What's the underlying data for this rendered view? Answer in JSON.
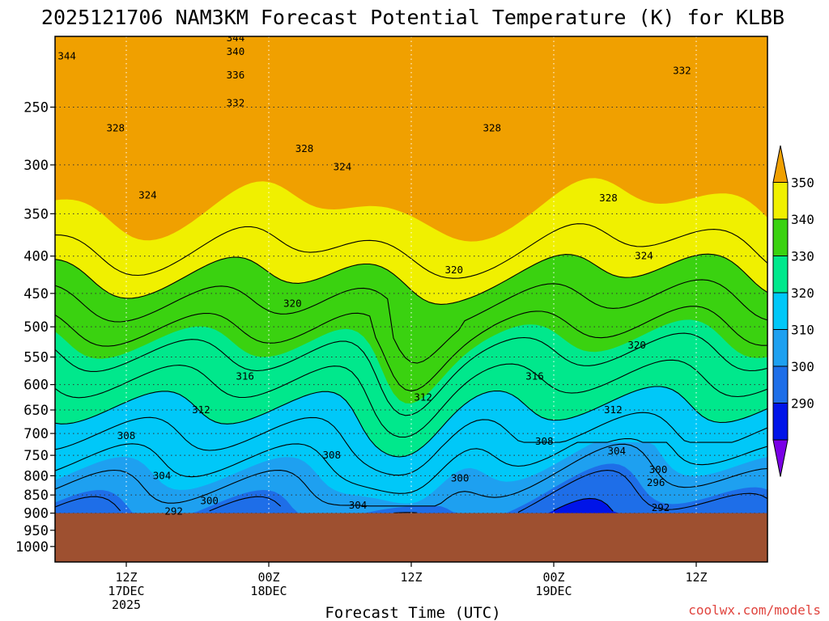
{
  "chart_data": {
    "type": "contour",
    "title": "2025121706 NAM3KM Forecast Potential Temperature (K) for KLBB",
    "xlabel": "Forecast Time (UTC)",
    "ylabel": "",
    "credit": "coolwx.com/models",
    "x_ticks": [
      {
        "hour": 6,
        "lines": [
          "12Z",
          "17DEC",
          "2025"
        ]
      },
      {
        "hour": 18,
        "lines": [
          "00Z",
          "18DEC"
        ]
      },
      {
        "hour": 30,
        "lines": [
          "12Z"
        ]
      },
      {
        "hour": 42,
        "lines": [
          "00Z",
          "19DEC"
        ]
      },
      {
        "hour": 54,
        "lines": [
          "12Z"
        ]
      }
    ],
    "xlim_hours": [
      0,
      60
    ],
    "y_ticks": [
      "250",
      "300",
      "350",
      "400",
      "450",
      "500",
      "550",
      "600",
      "650",
      "700",
      "750",
      "800",
      "850",
      "900",
      "950",
      "1000"
    ],
    "ylim_hpa": [
      1050,
      200
    ],
    "y_scale": "log",
    "terrain_pressure_hpa": 900,
    "colorbar": {
      "levels": [
        "290",
        "300",
        "310",
        "320",
        "330",
        "340",
        "350"
      ],
      "colors": [
        "#7a00e6",
        "#0014e8",
        "#1e6ee8",
        "#1ea0f0",
        "#00c8f8",
        "#00e88c",
        "#3ad210",
        "#f0f000",
        "#f0a000"
      ]
    },
    "contour_labels": [
      {
        "text": "344",
        "hour": 1.0,
        "p": 213
      },
      {
        "text": "344",
        "hour": 15.2,
        "p": 201
      },
      {
        "text": "340",
        "hour": 15.2,
        "p": 210
      },
      {
        "text": "336",
        "hour": 15.2,
        "p": 226
      },
      {
        "text": "332",
        "hour": 15.2,
        "p": 247
      },
      {
        "text": "332",
        "hour": 52.8,
        "p": 223
      },
      {
        "text": "328",
        "hour": 5.1,
        "p": 267
      },
      {
        "text": "328",
        "hour": 21.0,
        "p": 285
      },
      {
        "text": "328",
        "hour": 36.8,
        "p": 267
      },
      {
        "text": "328",
        "hour": 46.6,
        "p": 333
      },
      {
        "text": "324",
        "hour": 7.8,
        "p": 330
      },
      {
        "text": "324",
        "hour": 24.2,
        "p": 302
      },
      {
        "text": "324",
        "hour": 49.6,
        "p": 400
      },
      {
        "text": "320",
        "hour": 33.6,
        "p": 418
      },
      {
        "text": "320",
        "hour": 20.0,
        "p": 465
      },
      {
        "text": "320",
        "hour": 49.0,
        "p": 530
      },
      {
        "text": "316",
        "hour": 16.0,
        "p": 585
      },
      {
        "text": "316",
        "hour": 40.4,
        "p": 585
      },
      {
        "text": "312",
        "hour": 12.3,
        "p": 650
      },
      {
        "text": "312",
        "hour": 31.0,
        "p": 625
      },
      {
        "text": "312",
        "hour": 47.0,
        "p": 650
      },
      {
        "text": "308",
        "hour": 6.0,
        "p": 705
      },
      {
        "text": "308",
        "hour": 23.3,
        "p": 750
      },
      {
        "text": "308",
        "hour": 41.2,
        "p": 718
      },
      {
        "text": "304",
        "hour": 9.0,
        "p": 800
      },
      {
        "text": "304",
        "hour": 25.5,
        "p": 878
      },
      {
        "text": "304",
        "hour": 47.3,
        "p": 740
      },
      {
        "text": "300",
        "hour": 13.0,
        "p": 866
      },
      {
        "text": "300",
        "hour": 34.1,
        "p": 806
      },
      {
        "text": "300",
        "hour": 50.8,
        "p": 785
      },
      {
        "text": "296",
        "hour": 50.6,
        "p": 818
      },
      {
        "text": "292",
        "hour": 10.0,
        "p": 895
      },
      {
        "text": "292",
        "hour": 51.0,
        "p": 885
      }
    ]
  }
}
